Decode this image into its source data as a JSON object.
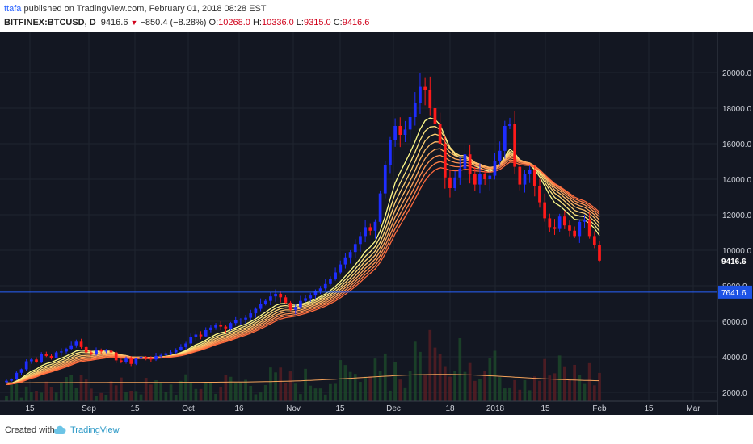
{
  "header": {
    "author": "ttafa",
    "published_text": " published on TradingView.com, February 01, 2018 08:28 EST",
    "symbol": "BITFINEX:BTCUSD, D",
    "last_price": "9416.6",
    "change_arrow": "▼",
    "change": "−850.4 (−8.28%)",
    "open_label": "O:",
    "open": "10268.0",
    "high_label": "H:",
    "high": "10336.0",
    "low_label": "L:",
    "low": "9315.0",
    "close_label": "C:",
    "close": "9416.6"
  },
  "footer": {
    "created_with": "Created with",
    "brand": "TradingView",
    "logo_icon": "tradingview-cloud-icon"
  },
  "colors": {
    "background": "#131722",
    "grid": "#1f2430",
    "axis_text": "#d1d4dc",
    "up": "#1e2dff",
    "down": "#ff1a1a",
    "hline": "#2962ff",
    "ribbon_fast": "#fffb8a",
    "ribbon_slow": "#ff6a3d",
    "volume_ma": "#f5a35b",
    "last_price_label": "#ffffff"
  },
  "chart_data": {
    "type": "candlestick",
    "y_ticks": [
      "2000.0",
      "4000.0",
      "6000.0",
      "8000.0",
      "10000.0",
      "12000.0",
      "14000.0",
      "16000.0",
      "18000.0",
      "20000.0"
    ],
    "x_ticks": [
      "15",
      "Sep",
      "15",
      "Oct",
      "16",
      "Nov",
      "15",
      "Dec",
      "18",
      "2018",
      "15",
      "Feb",
      "15",
      "Mar"
    ],
    "ylim": [
      1500,
      21200
    ],
    "last_price_label": "9416.6",
    "horizontal_line": {
      "value": 7641.6,
      "label": "7641.6"
    },
    "candles_close": [
      2650,
      2750,
      3100,
      3300,
      3750,
      3850,
      3700,
      4150,
      4050,
      3950,
      4250,
      4300,
      4450,
      4650,
      4850,
      4550,
      4250,
      4150,
      4400,
      4300,
      4350,
      4250,
      3800,
      3700,
      3900,
      3600,
      3900,
      4000,
      3900,
      3850,
      4050,
      4100,
      4200,
      4250,
      4400,
      4550,
      4750,
      5100,
      5250,
      5150,
      5500,
      5650,
      5800,
      5700,
      5600,
      5900,
      6050,
      6100,
      6200,
      6450,
      6700,
      7000,
      7150,
      7400,
      7550,
      7350,
      7050,
      6650,
      6800,
      7150,
      7300,
      7450,
      7700,
      7850,
      8100,
      8400,
      8750,
      9200,
      9600,
      9900,
      10350,
      10800,
      11300,
      11100,
      11600,
      13200,
      14800,
      16200,
      17000,
      16500,
      16800,
      17500,
      18300,
      19200,
      19000,
      18000,
      17100,
      16000,
      14100,
      13500,
      14100,
      14600,
      15400,
      14300,
      13700,
      14300,
      14000,
      14200,
      15000,
      15600,
      17000,
      17100,
      14700,
      13700,
      14300,
      14500,
      13600,
      12700,
      11800,
      11300,
      11200,
      11900,
      11400,
      11100,
      10800,
      11600,
      11700,
      10800,
      10300,
      9417
    ],
    "ma_ribbon_last": [
      12300,
      12200,
      12100,
      12000,
      11900,
      11800,
      11700
    ],
    "volume_ma_range": [
      2400,
      3100
    ]
  }
}
